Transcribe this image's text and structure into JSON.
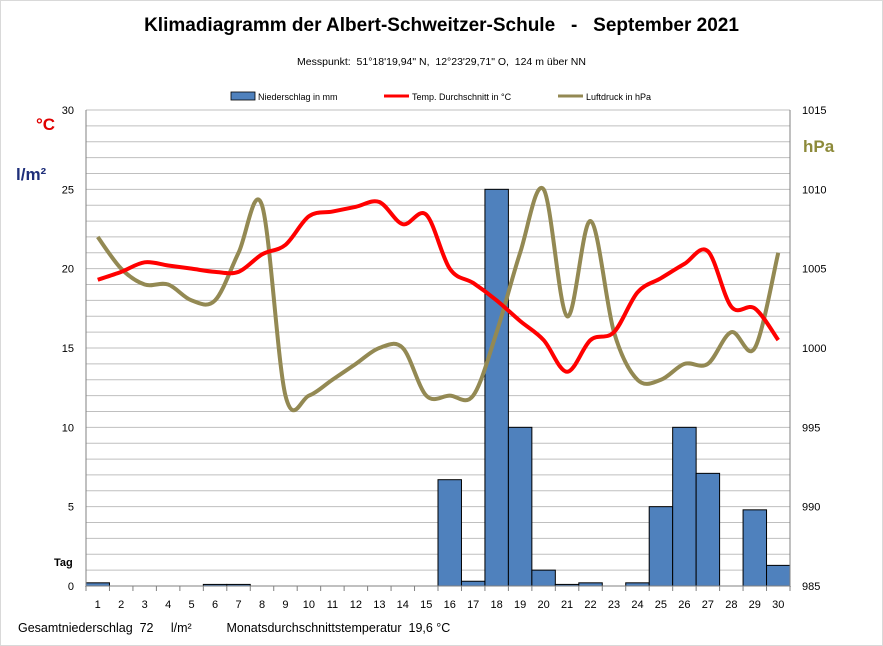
{
  "title": "Klimadiagramm der Albert-Schweitzer-Schule   -   September 2021",
  "subtitle": "Messpunkt:  51°18'19,94\" N,  12°23'29,71\" O,  124 m über NN",
  "units": {
    "celsius": "°C",
    "liter": "l/m²",
    "hpa": "hPa",
    "day": "Tag"
  },
  "footer": {
    "precip_label": "Gesamtniederschlag",
    "precip_value": "72",
    "precip_unit": "l/m²",
    "temp_label": "Monatsdurchschnittstemperatur",
    "temp_value": "19,6 °C"
  },
  "colors": {
    "precip": "#4f81bd",
    "temp": "#ff0000",
    "pressure": "#938953"
  },
  "chart_data": {
    "type": "bar",
    "x": [
      1,
      2,
      3,
      4,
      5,
      6,
      7,
      8,
      9,
      10,
      11,
      12,
      13,
      14,
      15,
      16,
      17,
      18,
      19,
      20,
      21,
      22,
      23,
      24,
      25,
      26,
      27,
      28,
      29,
      30
    ],
    "ylim": [
      0,
      30
    ],
    "y_ticks": [
      0,
      5,
      10,
      15,
      20,
      25,
      30
    ],
    "y2lim": [
      985,
      1015
    ],
    "y2_ticks": [
      985,
      990,
      995,
      1000,
      1005,
      1010,
      1015
    ],
    "grid": true,
    "legend_position": "top",
    "series": [
      {
        "name": "Niederschlag in mm",
        "type": "bar",
        "axis": "left",
        "values": [
          0.2,
          0,
          0,
          0,
          0,
          0.1,
          0.1,
          0,
          0,
          0,
          0,
          0,
          0,
          0,
          0,
          6.7,
          0.3,
          25,
          10,
          1,
          0.1,
          0.2,
          0,
          0.2,
          5,
          10,
          7.1,
          0,
          4.8,
          1.3
        ]
      },
      {
        "name": "Temp. Durchschnitt in °C",
        "type": "line",
        "axis": "left",
        "values": [
          19.3,
          19.8,
          20.4,
          20.2,
          20.0,
          19.8,
          19.8,
          20.9,
          21.5,
          23.3,
          23.6,
          23.9,
          24.2,
          22.8,
          23.4,
          20.0,
          19.1,
          18.0,
          16.7,
          15.5,
          13.5,
          15.5,
          16.0,
          18.5,
          19.4,
          20.3,
          21.1,
          17.6,
          17.5,
          15.5
        ]
      },
      {
        "name": "Luftdruck in hPa",
        "type": "line",
        "axis": "right",
        "values": [
          1007,
          1005,
          1004,
          1004,
          1003,
          1003,
          1006,
          1009,
          997,
          997,
          998,
          999,
          1000,
          1000,
          997,
          997,
          997,
          1001,
          1006,
          1010,
          1002,
          1008,
          1001,
          998,
          998,
          999,
          999,
          1001,
          1000,
          1006
        ]
      }
    ]
  }
}
